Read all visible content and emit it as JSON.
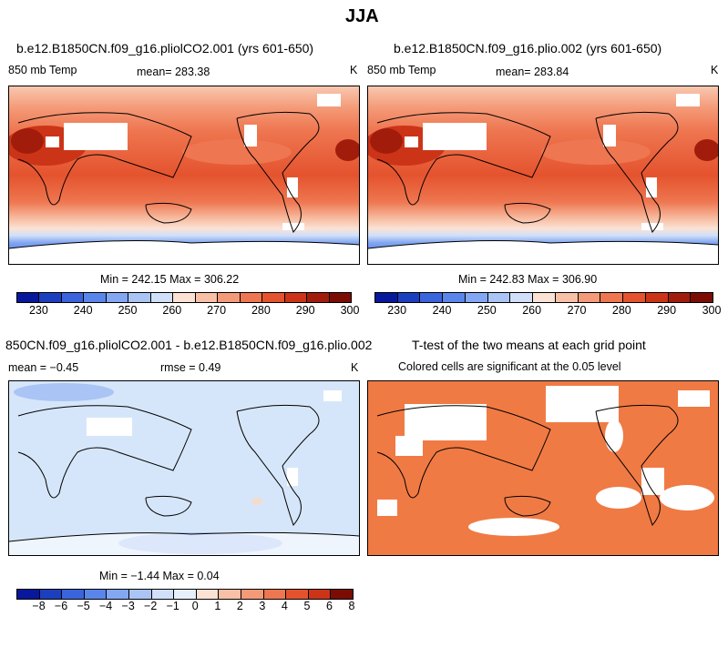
{
  "title": "JJA",
  "panels": {
    "p1": {
      "title": "b.e12.B1850CN.f09_g16.pliolCO2.001 (yrs 601-650)",
      "left": "850 mb Temp",
      "center": "mean= 283.38",
      "right": "K",
      "stats": "Min = 242.15 Max = 306.22"
    },
    "p2": {
      "title": "b.e12.B1850CN.f09_g16.plio.002 (yrs 601-650)",
      "left": "850 mb Temp",
      "center": "mean= 283.84",
      "right": "K",
      "stats": "Min = 242.83 Max = 306.90"
    },
    "p3": {
      "title": "850CN.f09_g16.pliolCO2.001 - b.e12.B1850CN.f09_g16.plio.002",
      "mean": "mean = −0.45",
      "rmse": "rmse = 0.49",
      "right": "K",
      "stats": "Min = −1.44 Max = 0.04"
    },
    "p4": {
      "title": "T-test of the two means at each grid point",
      "subtitle": "Colored cells are significant at the 0.05 level"
    }
  },
  "colorbar_temp": {
    "colors": [
      "#08189c",
      "#1c3fbf",
      "#3a64dc",
      "#5a86ec",
      "#83a7f2",
      "#aac4f5",
      "#d1e0f8",
      "#fbe2d4",
      "#f8c0a6",
      "#f49a78",
      "#ee7650",
      "#e4532e",
      "#cc3418",
      "#a21c0c",
      "#7a0c04"
    ],
    "labels": [
      "230",
      "240",
      "250",
      "260",
      "270",
      "280",
      "290",
      "300"
    ]
  },
  "colorbar_diff": {
    "colors": [
      "#08189c",
      "#1c3fbf",
      "#3a64dc",
      "#5a86ec",
      "#83a7f2",
      "#aac4f5",
      "#d1e0f8",
      "#e6effb",
      "#fbe2d4",
      "#f8c0a6",
      "#f49a78",
      "#ee7650",
      "#e4532e",
      "#cc3418",
      "#7a0c04"
    ],
    "labels": [
      "−8",
      "−6",
      "−5",
      "−4",
      "−3",
      "−2",
      "−1",
      "0",
      "1",
      "2",
      "3",
      "4",
      "5",
      "6",
      "8"
    ]
  }
}
